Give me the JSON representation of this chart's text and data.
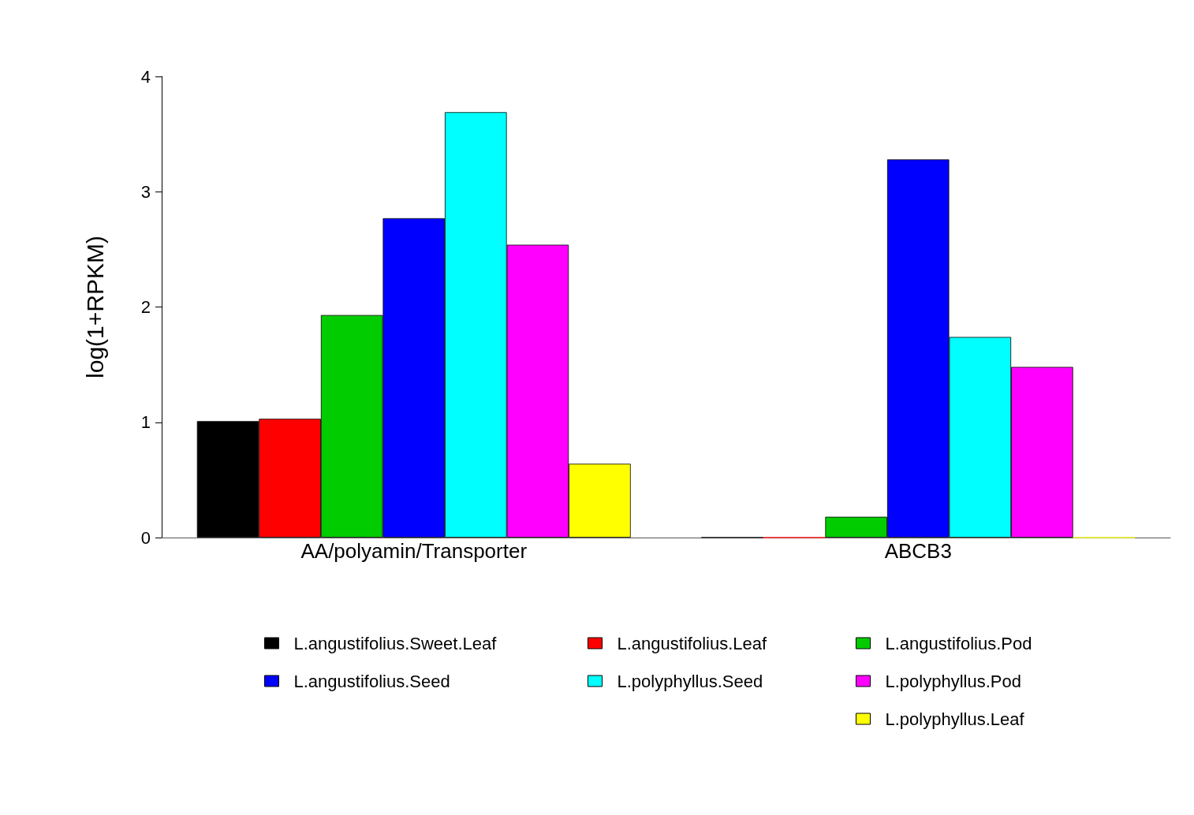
{
  "chart_data": {
    "type": "bar",
    "ylabel": "log(1+RPKM)",
    "categories": [
      "AA/polyamin/Transporter",
      "ABCB3"
    ],
    "series": [
      {
        "name": "L.angustifolius.Sweet.Leaf",
        "color": "#000000",
        "values": [
          1.01,
          0
        ]
      },
      {
        "name": "L.angustifolius.Leaf",
        "color": "#ff0000",
        "values": [
          1.03,
          0
        ]
      },
      {
        "name": "L.angustifolius.Pod",
        "color": "#00cc00",
        "values": [
          1.93,
          0.18
        ]
      },
      {
        "name": "L.angustifolius.Seed",
        "color": "#0000ff",
        "values": [
          2.77,
          3.28
        ]
      },
      {
        "name": "L.polyphyllus.Seed",
        "color": "#00ffff",
        "values": [
          3.69,
          1.74
        ]
      },
      {
        "name": "L.polyphyllus.Pod",
        "color": "#ff00ff",
        "values": [
          2.54,
          1.48
        ]
      },
      {
        "name": "L.polyphyllus.Leaf",
        "color": "#ffff00",
        "values": [
          0.64,
          0
        ]
      }
    ],
    "ylim": [
      0,
      4
    ],
    "yticks": [
      0,
      1,
      2,
      3,
      4
    ],
    "grid": false,
    "legend": "bottom"
  }
}
